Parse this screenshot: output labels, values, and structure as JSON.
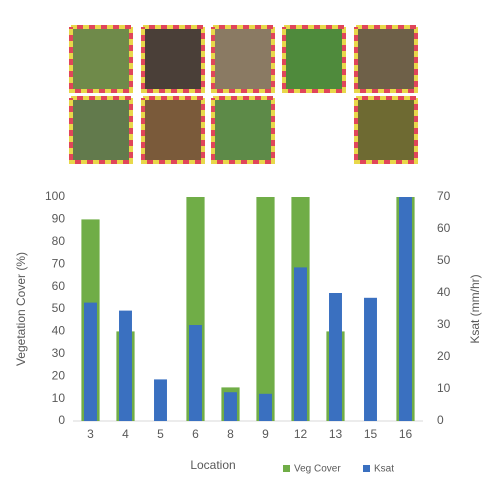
{
  "chart_data": {
    "type": "bar",
    "x_label": "Location",
    "y_label": "Vegetation Cover (%)",
    "y2_label": "Ksat (mm/hr)",
    "categories": [
      "3",
      "4",
      "5",
      "6",
      "8",
      "9",
      "12",
      "13",
      "15",
      "16"
    ],
    "series": [
      {
        "name": "Veg Cover",
        "color": "#70ad47",
        "values": [
          90,
          40,
          0,
          100,
          15,
          100,
          100,
          40,
          0,
          100
        ]
      },
      {
        "name": "Ksat",
        "color": "#3a70c0",
        "axis": "y2",
        "values": [
          37,
          34.5,
          13,
          30,
          9,
          8.5,
          48,
          40,
          38.5,
          70
        ]
      }
    ],
    "ylim": [
      0,
      100
    ],
    "yticks": [
      0,
      10,
      20,
      30,
      40,
      50,
      60,
      70,
      80,
      90,
      100
    ],
    "y2lim": [
      0,
      70
    ],
    "y2ticks": [
      0,
      10,
      20,
      30,
      40,
      50,
      60,
      70
    ],
    "grid": false,
    "legend": "bottom"
  }
}
